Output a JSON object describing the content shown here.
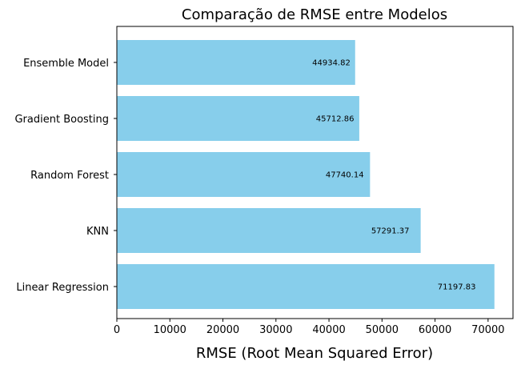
{
  "chart_data": {
    "type": "bar",
    "orientation": "horizontal",
    "title": "Comparação de RMSE entre Modelos",
    "xlabel": "RMSE (Root Mean Squared Error)",
    "ylabel": "",
    "categories": [
      "Ensemble Model",
      "Gradient Boosting",
      "Random Forest",
      "KNN",
      "Linear Regression"
    ],
    "values": [
      44934.82,
      45712.86,
      47740.14,
      57291.37,
      71197.83
    ],
    "data_labels": [
      "44934.82",
      "45712.86",
      "47740.14",
      "57291.37",
      "71197.83"
    ],
    "xlim": [
      0,
      74700
    ],
    "xticks": [
      0,
      10000,
      20000,
      30000,
      40000,
      50000,
      60000,
      70000
    ],
    "xtick_labels": [
      "0",
      "10000",
      "20000",
      "30000",
      "40000",
      "50000",
      "60000",
      "70000"
    ],
    "bar_color": "#87CEEB",
    "grid": false,
    "legend": "none"
  }
}
